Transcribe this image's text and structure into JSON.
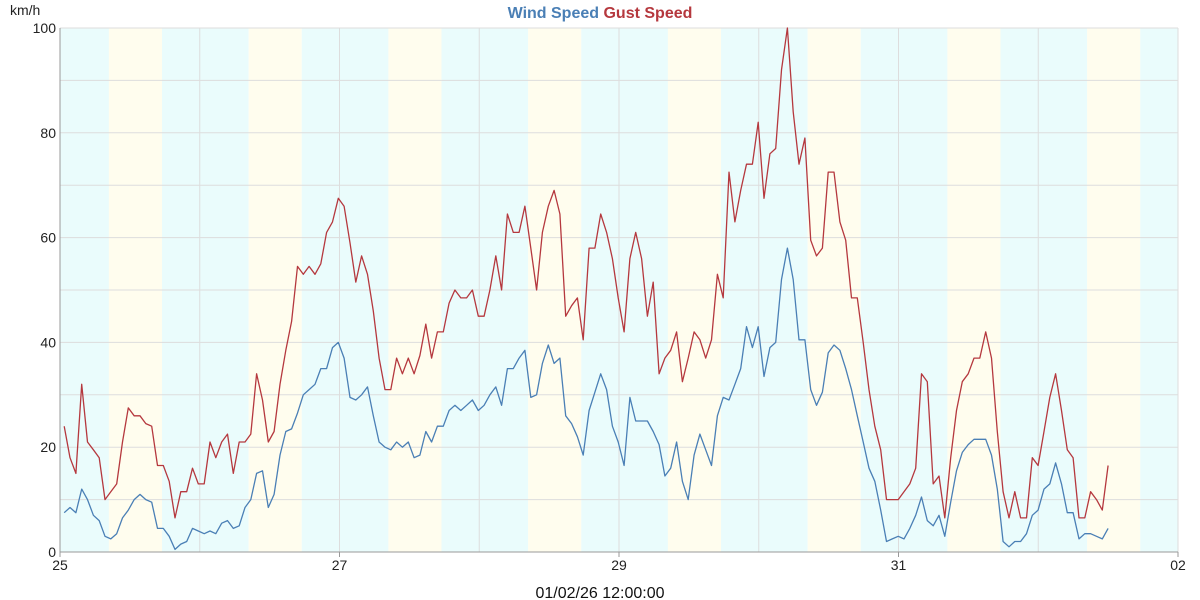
{
  "chart_data": {
    "type": "line",
    "ylabel": "km/h",
    "ylim": [
      0,
      100
    ],
    "yticks": [
      "0",
      "20",
      "40",
      "60",
      "80",
      "100"
    ],
    "x_labels": [
      "25",
      "27",
      "29",
      "31",
      "02"
    ],
    "footer": "01/02/26 12:00:00",
    "legend_placement": "top-center",
    "grid": true,
    "colors": {
      "wind": "#4a7fb5",
      "gust": "#b5383e",
      "band_day": "#fffdee",
      "band_night": "#eafcfc",
      "grid": "#dddddd"
    },
    "series": [
      {
        "name": "Wind Speed",
        "values": [
          7.5,
          8.5,
          7.5,
          12,
          10,
          7,
          6,
          3,
          2.5,
          3.5,
          6.5,
          8,
          10,
          11,
          10,
          9.5,
          4.5,
          4.5,
          3,
          0.5,
          1.5,
          2,
          4.5,
          4,
          3.5,
          4,
          3.5,
          5.5,
          6,
          4.5,
          5,
          8.5,
          10,
          15,
          15.5,
          8.5,
          11,
          18.5,
          23,
          23.5,
          26.5,
          30,
          31,
          32,
          35,
          35,
          39,
          40,
          37,
          29.5,
          29,
          30,
          31.5,
          26,
          21,
          20,
          19.5,
          21,
          20,
          21,
          18,
          18.5,
          23,
          21,
          24,
          24,
          27,
          28,
          27,
          28,
          29,
          27,
          28,
          30,
          31.5,
          28,
          35,
          35,
          37,
          38.5,
          29.5,
          30,
          36,
          39.5,
          36,
          37,
          26,
          24.5,
          22,
          18.5,
          27,
          30.5,
          34,
          31,
          24,
          21,
          16.5,
          29.5,
          25,
          25,
          25,
          23,
          20.5,
          14.5,
          16,
          21,
          13.5,
          10,
          18.5,
          22.5,
          19.5,
          16.5,
          26,
          29.5,
          29,
          32,
          35,
          43,
          39,
          43,
          33.5,
          39,
          40,
          52,
          58,
          52,
          40.5,
          40.5,
          31,
          28,
          30.5,
          38,
          39.5,
          38.5,
          35,
          31,
          26,
          21,
          16,
          13.5,
          8,
          2,
          2.5,
          3,
          2.5,
          4.5,
          7,
          10.5,
          6,
          5,
          7,
          3,
          9.5,
          15.5,
          19,
          20.5,
          21.5,
          21.5,
          21.5,
          18.5,
          12,
          2,
          1,
          2,
          2,
          3.5,
          7,
          8,
          12,
          13,
          17,
          13,
          7.5,
          7.5,
          2.5,
          3.5,
          3.5,
          3,
          2.5,
          4.5
        ]
      },
      {
        "name": "Gust Speed",
        "values": [
          24,
          18,
          15,
          32,
          21,
          19.5,
          18,
          10,
          11.5,
          13,
          21,
          27.5,
          26,
          26,
          24.5,
          24,
          16.5,
          16.5,
          13.5,
          6.5,
          11.5,
          11.5,
          16,
          13,
          13,
          21,
          18,
          21,
          22.5,
          15,
          21,
          21,
          22.5,
          34,
          29,
          21,
          23,
          32,
          38.5,
          44,
          54.5,
          53,
          54.5,
          53,
          55,
          61,
          63,
          67.5,
          66,
          59,
          51.5,
          56.5,
          53,
          46,
          37,
          31,
          31,
          37,
          34,
          37,
          34,
          37.5,
          43.5,
          37,
          42,
          42,
          47.5,
          50,
          48.5,
          48.5,
          50,
          45,
          45,
          50,
          56.5,
          50,
          64.5,
          61,
          61,
          66,
          58,
          50,
          61,
          66,
          69,
          64.5,
          45,
          47,
          48.5,
          40.5,
          58,
          58,
          64.5,
          61,
          56,
          48.5,
          42,
          56,
          61,
          56,
          45,
          51.5,
          34,
          37,
          38.5,
          42,
          32.5,
          37,
          42,
          40.5,
          37,
          40.5,
          53,
          48.5,
          72.5,
          63,
          69,
          74,
          74,
          82,
          67.5,
          76,
          77,
          92,
          100,
          84,
          74,
          79,
          59.5,
          56.5,
          58,
          72.5,
          72.5,
          63,
          59.5,
          48.5,
          48.5,
          40,
          31,
          24,
          19.5,
          10,
          10,
          10,
          11.5,
          13,
          16,
          34,
          32.5,
          13,
          14.5,
          6.5,
          18,
          27,
          32.5,
          34,
          37,
          37,
          42,
          37,
          23,
          11.5,
          6.5,
          11.5,
          6.5,
          6.5,
          18,
          16.5,
          23,
          29.5,
          34,
          27,
          19.5,
          18,
          6.5,
          6.5,
          11.5,
          10,
          8,
          16.5
        ]
      }
    ]
  }
}
